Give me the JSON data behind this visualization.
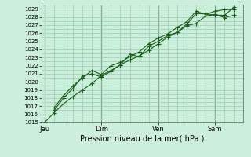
{
  "xlabel": "Pression niveau de la mer( hPa )",
  "background_color": "#cceedd",
  "plot_bg_color": "#cceedd",
  "grid_color": "#99ccaa",
  "line_color": "#1a5c1a",
  "marker_color": "#1a5c1a",
  "ylim": [
    1015,
    1029.5
  ],
  "yticks": [
    1015,
    1016,
    1017,
    1018,
    1019,
    1020,
    1021,
    1022,
    1023,
    1024,
    1025,
    1026,
    1027,
    1028,
    1029
  ],
  "xtick_labels": [
    "Jeu",
    "Dim",
    "Ven",
    "Sam"
  ],
  "xtick_positions": [
    0,
    36,
    72,
    108
  ],
  "xlim": [
    -2,
    126
  ],
  "vline_color": "#446655",
  "line1_x": [
    0,
    6,
    12,
    18,
    24,
    30,
    36,
    42,
    48,
    54,
    60,
    66,
    72,
    78,
    84,
    90,
    96,
    102,
    108,
    114,
    120
  ],
  "line1_y": [
    1015.0,
    1016.2,
    1017.3,
    1018.2,
    1019.0,
    1019.8,
    1020.8,
    1021.4,
    1022.1,
    1022.7,
    1023.2,
    1023.9,
    1024.7,
    1025.5,
    1026.1,
    1026.9,
    1027.2,
    1028.1,
    1028.3,
    1027.9,
    1028.2
  ],
  "line2_x": [
    6,
    12,
    18,
    24,
    30,
    36,
    42,
    48,
    54,
    60,
    66,
    72,
    78,
    84,
    90,
    96,
    102,
    108,
    114,
    120
  ],
  "line2_y": [
    1016.5,
    1018.0,
    1019.2,
    1020.7,
    1021.0,
    1020.6,
    1021.3,
    1022.1,
    1023.4,
    1023.1,
    1024.4,
    1025.0,
    1025.7,
    1026.1,
    1027.1,
    1028.4,
    1028.4,
    1028.2,
    1028.2,
    1029.2
  ],
  "line3_x": [
    6,
    12,
    18,
    24,
    30,
    36,
    42,
    48,
    54,
    60,
    66,
    72,
    78,
    84,
    90,
    96,
    102,
    108,
    114,
    120
  ],
  "line3_y": [
    1016.8,
    1018.3,
    1019.5,
    1020.5,
    1021.4,
    1020.9,
    1022.0,
    1022.4,
    1023.1,
    1023.7,
    1024.7,
    1025.4,
    1025.9,
    1026.7,
    1027.4,
    1028.7,
    1028.3,
    1028.7,
    1028.9,
    1028.9
  ]
}
